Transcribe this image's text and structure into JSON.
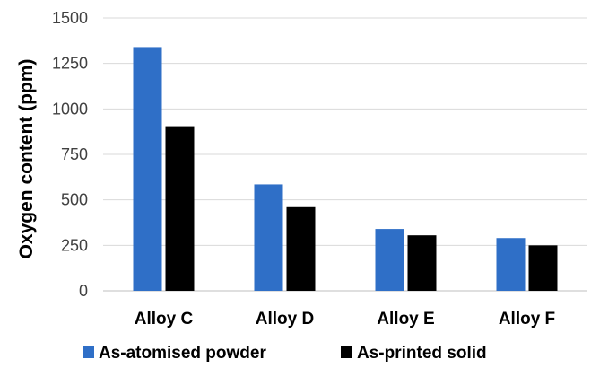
{
  "chart_data": {
    "type": "bar",
    "title": "",
    "xlabel": "",
    "ylabel": "Oxygen content (ppm)",
    "ylim": [
      0,
      1500
    ],
    "yticks": [
      0,
      250,
      500,
      750,
      1000,
      1250,
      1500
    ],
    "grid": true,
    "legend_position": "bottom",
    "categories": [
      "Alloy C",
      "Alloy D",
      "Alloy E",
      "Alloy F"
    ],
    "series": [
      {
        "name": "As-atomised powder",
        "color": "#2f6fc7",
        "values": [
          1340,
          585,
          340,
          290
        ]
      },
      {
        "name": "As-printed solid",
        "color": "#000000",
        "values": [
          905,
          460,
          305,
          250
        ]
      }
    ]
  }
}
